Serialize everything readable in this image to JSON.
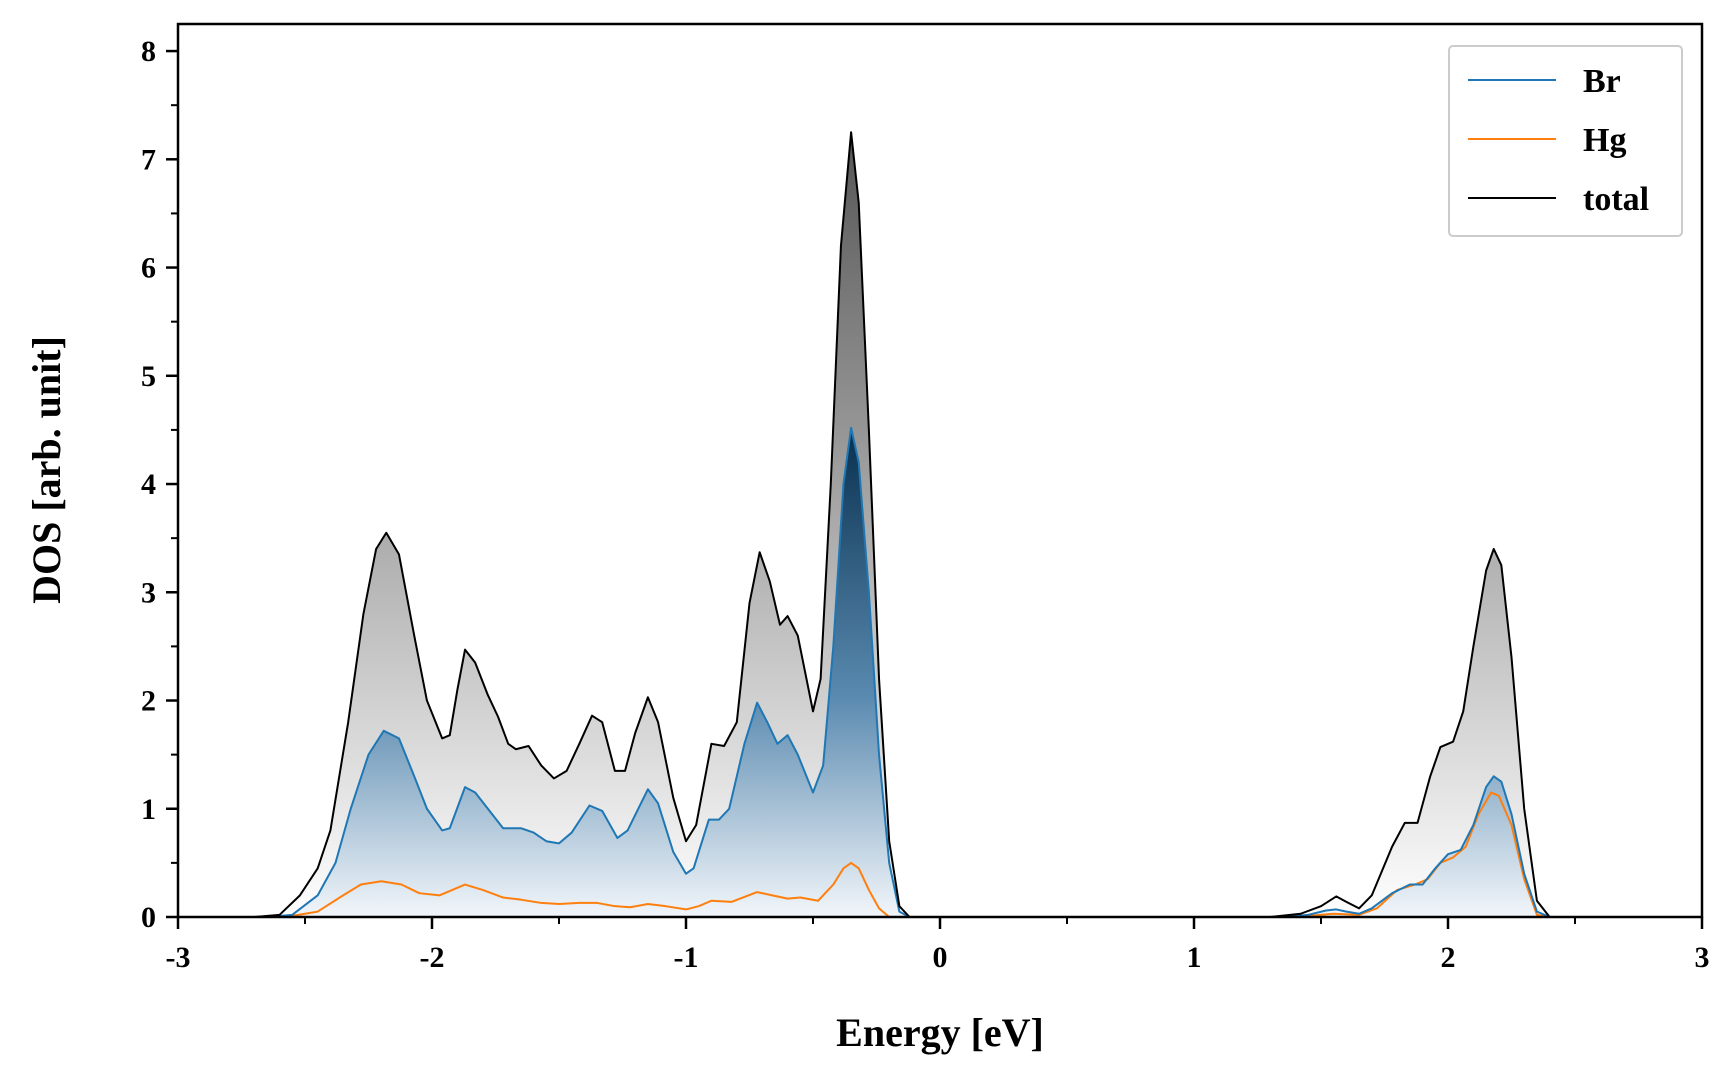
{
  "chart_data": {
    "type": "area",
    "xlabel": "Energy [eV]",
    "ylabel": "DOS [arb. unit]",
    "xlim": [
      -3,
      3
    ],
    "ylim": [
      0,
      8.25
    ],
    "xticks": [
      -3,
      -2,
      -1,
      0,
      1,
      2,
      3
    ],
    "xtick_labels": [
      "-3",
      "-2",
      "-1",
      "0",
      "1",
      "2",
      "3"
    ],
    "yticks": [
      0,
      1,
      2,
      3,
      4,
      5,
      6,
      7,
      8
    ],
    "ytick_labels": [
      "0",
      "1",
      "2",
      "3",
      "4",
      "5",
      "6",
      "7",
      "8"
    ],
    "grid": false,
    "legend_position": "top-right",
    "series": [
      {
        "name": "Br",
        "color": "#1f77b4",
        "fill": "blue-gradient",
        "points": [
          [
            -2.65,
            0
          ],
          [
            -2.55,
            0.02
          ],
          [
            -2.45,
            0.2
          ],
          [
            -2.38,
            0.5
          ],
          [
            -2.32,
            1.0
          ],
          [
            -2.25,
            1.5
          ],
          [
            -2.19,
            1.72
          ],
          [
            -2.13,
            1.65
          ],
          [
            -2.07,
            1.3
          ],
          [
            -2.02,
            1.0
          ],
          [
            -1.96,
            0.8
          ],
          [
            -1.93,
            0.82
          ],
          [
            -1.87,
            1.2
          ],
          [
            -1.83,
            1.15
          ],
          [
            -1.78,
            1.0
          ],
          [
            -1.72,
            0.82
          ],
          [
            -1.65,
            0.82
          ],
          [
            -1.6,
            0.78
          ],
          [
            -1.55,
            0.7
          ],
          [
            -1.5,
            0.68
          ],
          [
            -1.45,
            0.78
          ],
          [
            -1.38,
            1.03
          ],
          [
            -1.33,
            0.98
          ],
          [
            -1.27,
            0.73
          ],
          [
            -1.23,
            0.8
          ],
          [
            -1.15,
            1.18
          ],
          [
            -1.11,
            1.05
          ],
          [
            -1.05,
            0.6
          ],
          [
            -1.0,
            0.4
          ],
          [
            -0.97,
            0.45
          ],
          [
            -0.91,
            0.9
          ],
          [
            -0.87,
            0.9
          ],
          [
            -0.83,
            1.0
          ],
          [
            -0.77,
            1.6
          ],
          [
            -0.72,
            1.98
          ],
          [
            -0.68,
            1.8
          ],
          [
            -0.64,
            1.6
          ],
          [
            -0.6,
            1.68
          ],
          [
            -0.56,
            1.5
          ],
          [
            -0.5,
            1.15
          ],
          [
            -0.46,
            1.4
          ],
          [
            -0.42,
            2.5
          ],
          [
            -0.38,
            4.0
          ],
          [
            -0.35,
            4.52
          ],
          [
            -0.32,
            4.2
          ],
          [
            -0.28,
            3.0
          ],
          [
            -0.24,
            1.5
          ],
          [
            -0.2,
            0.5
          ],
          [
            -0.16,
            0.05
          ],
          [
            -0.12,
            0
          ],
          [
            1.35,
            0
          ],
          [
            1.45,
            0.02
          ],
          [
            1.52,
            0.06
          ],
          [
            1.56,
            0.07
          ],
          [
            1.6,
            0.05
          ],
          [
            1.65,
            0.03
          ],
          [
            1.7,
            0.08
          ],
          [
            1.78,
            0.22
          ],
          [
            1.85,
            0.3
          ],
          [
            1.9,
            0.3
          ],
          [
            1.95,
            0.45
          ],
          [
            2.0,
            0.58
          ],
          [
            2.05,
            0.62
          ],
          [
            2.1,
            0.85
          ],
          [
            2.15,
            1.2
          ],
          [
            2.18,
            1.3
          ],
          [
            2.21,
            1.25
          ],
          [
            2.25,
            0.95
          ],
          [
            2.3,
            0.4
          ],
          [
            2.35,
            0.05
          ],
          [
            2.4,
            0
          ]
        ]
      },
      {
        "name": "Hg",
        "color": "#ff7f0e",
        "fill": "none",
        "points": [
          [
            -2.65,
            0
          ],
          [
            -2.55,
            0.01
          ],
          [
            -2.45,
            0.05
          ],
          [
            -2.35,
            0.2
          ],
          [
            -2.28,
            0.3
          ],
          [
            -2.2,
            0.33
          ],
          [
            -2.12,
            0.3
          ],
          [
            -2.05,
            0.22
          ],
          [
            -1.97,
            0.2
          ],
          [
            -1.92,
            0.25
          ],
          [
            -1.87,
            0.3
          ],
          [
            -1.8,
            0.25
          ],
          [
            -1.72,
            0.18
          ],
          [
            -1.65,
            0.16
          ],
          [
            -1.57,
            0.13
          ],
          [
            -1.5,
            0.12
          ],
          [
            -1.42,
            0.13
          ],
          [
            -1.35,
            0.13
          ],
          [
            -1.28,
            0.1
          ],
          [
            -1.22,
            0.09
          ],
          [
            -1.15,
            0.12
          ],
          [
            -1.08,
            0.1
          ],
          [
            -1.0,
            0.07
          ],
          [
            -0.95,
            0.1
          ],
          [
            -0.9,
            0.15
          ],
          [
            -0.82,
            0.14
          ],
          [
            -0.72,
            0.23
          ],
          [
            -0.66,
            0.2
          ],
          [
            -0.6,
            0.17
          ],
          [
            -0.55,
            0.18
          ],
          [
            -0.48,
            0.15
          ],
          [
            -0.42,
            0.3
          ],
          [
            -0.38,
            0.45
          ],
          [
            -0.35,
            0.5
          ],
          [
            -0.32,
            0.45
          ],
          [
            -0.28,
            0.25
          ],
          [
            -0.24,
            0.08
          ],
          [
            -0.2,
            0
          ],
          [
            1.35,
            0
          ],
          [
            1.45,
            0.01
          ],
          [
            1.55,
            0.03
          ],
          [
            1.65,
            0.02
          ],
          [
            1.72,
            0.08
          ],
          [
            1.8,
            0.25
          ],
          [
            1.87,
            0.3
          ],
          [
            1.92,
            0.35
          ],
          [
            1.97,
            0.5
          ],
          [
            2.02,
            0.55
          ],
          [
            2.07,
            0.65
          ],
          [
            2.12,
            0.95
          ],
          [
            2.17,
            1.15
          ],
          [
            2.2,
            1.12
          ],
          [
            2.25,
            0.85
          ],
          [
            2.3,
            0.35
          ],
          [
            2.35,
            0.02
          ],
          [
            2.4,
            0
          ]
        ]
      },
      {
        "name": "total",
        "color": "#000000",
        "fill": "gray-gradient",
        "points": [
          [
            -2.7,
            0
          ],
          [
            -2.6,
            0.02
          ],
          [
            -2.52,
            0.2
          ],
          [
            -2.45,
            0.45
          ],
          [
            -2.4,
            0.8
          ],
          [
            -2.33,
            1.8
          ],
          [
            -2.27,
            2.8
          ],
          [
            -2.22,
            3.4
          ],
          [
            -2.18,
            3.55
          ],
          [
            -2.13,
            3.35
          ],
          [
            -2.07,
            2.6
          ],
          [
            -2.02,
            2.0
          ],
          [
            -1.96,
            1.65
          ],
          [
            -1.93,
            1.68
          ],
          [
            -1.9,
            2.1
          ],
          [
            -1.87,
            2.47
          ],
          [
            -1.83,
            2.35
          ],
          [
            -1.78,
            2.05
          ],
          [
            -1.74,
            1.85
          ],
          [
            -1.7,
            1.6
          ],
          [
            -1.67,
            1.55
          ],
          [
            -1.62,
            1.58
          ],
          [
            -1.57,
            1.4
          ],
          [
            -1.52,
            1.28
          ],
          [
            -1.47,
            1.35
          ],
          [
            -1.42,
            1.6
          ],
          [
            -1.37,
            1.86
          ],
          [
            -1.33,
            1.8
          ],
          [
            -1.28,
            1.35
          ],
          [
            -1.24,
            1.35
          ],
          [
            -1.2,
            1.7
          ],
          [
            -1.15,
            2.03
          ],
          [
            -1.11,
            1.8
          ],
          [
            -1.05,
            1.1
          ],
          [
            -1.0,
            0.7
          ],
          [
            -0.96,
            0.85
          ],
          [
            -0.9,
            1.6
          ],
          [
            -0.85,
            1.58
          ],
          [
            -0.8,
            1.8
          ],
          [
            -0.75,
            2.9
          ],
          [
            -0.71,
            3.37
          ],
          [
            -0.67,
            3.1
          ],
          [
            -0.63,
            2.7
          ],
          [
            -0.6,
            2.78
          ],
          [
            -0.56,
            2.6
          ],
          [
            -0.5,
            1.9
          ],
          [
            -0.47,
            2.2
          ],
          [
            -0.43,
            4.0
          ],
          [
            -0.39,
            6.2
          ],
          [
            -0.35,
            7.25
          ],
          [
            -0.32,
            6.6
          ],
          [
            -0.28,
            4.5
          ],
          [
            -0.24,
            2.2
          ],
          [
            -0.2,
            0.7
          ],
          [
            -0.16,
            0.1
          ],
          [
            -0.12,
            0
          ],
          [
            1.3,
            0
          ],
          [
            1.42,
            0.03
          ],
          [
            1.5,
            0.1
          ],
          [
            1.56,
            0.19
          ],
          [
            1.6,
            0.14
          ],
          [
            1.65,
            0.08
          ],
          [
            1.7,
            0.2
          ],
          [
            1.78,
            0.65
          ],
          [
            1.83,
            0.87
          ],
          [
            1.88,
            0.87
          ],
          [
            1.93,
            1.3
          ],
          [
            1.97,
            1.57
          ],
          [
            2.02,
            1.62
          ],
          [
            2.06,
            1.9
          ],
          [
            2.1,
            2.5
          ],
          [
            2.15,
            3.2
          ],
          [
            2.18,
            3.4
          ],
          [
            2.21,
            3.25
          ],
          [
            2.25,
            2.4
          ],
          [
            2.3,
            1.0
          ],
          [
            2.35,
            0.15
          ],
          [
            2.4,
            0
          ]
        ]
      }
    ]
  }
}
